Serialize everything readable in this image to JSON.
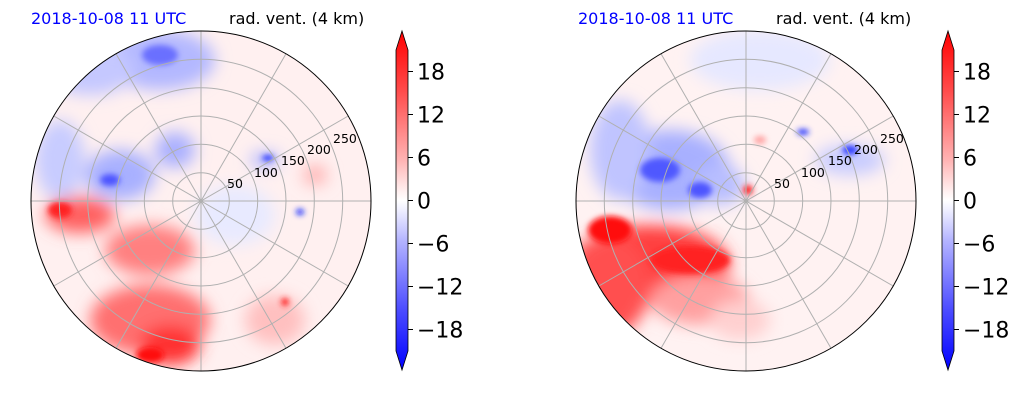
{
  "chart_data": [
    {
      "type": "polar-contour",
      "title_left": "2018-10-08 11 UTC",
      "title_right": "rad. vent. (4 km)",
      "range_rings": [
        "50",
        "100",
        "150",
        "200",
        "250"
      ],
      "colorbar": {
        "ticks": [
          "18",
          "12",
          "6",
          "0",
          "−6",
          "−12",
          "−18"
        ],
        "tick_values": [
          18,
          12,
          6,
          0,
          -6,
          -12,
          -18
        ],
        "range": [
          -21,
          21
        ],
        "extend": "both",
        "colormap": "bwr"
      }
    },
    {
      "type": "polar-contour",
      "title_left": "2018-10-08 11 UTC",
      "title_right": "rad. vent. (4 km)",
      "range_rings": [
        "50",
        "100",
        "150",
        "200",
        "250"
      ],
      "colorbar": {
        "ticks": [
          "18",
          "12",
          "6",
          "0",
          "−6",
          "−12",
          "−18"
        ],
        "tick_values": [
          18,
          12,
          6,
          0,
          -6,
          -12,
          -18
        ],
        "range": [
          -21,
          21
        ],
        "extend": "both",
        "colormap": "bwr"
      }
    }
  ],
  "colors": {
    "title_left": "#0000ff",
    "title_right": "#000000",
    "grid": "#b0b0b0",
    "positive": "#ff0000",
    "negative": "#0000ff"
  }
}
